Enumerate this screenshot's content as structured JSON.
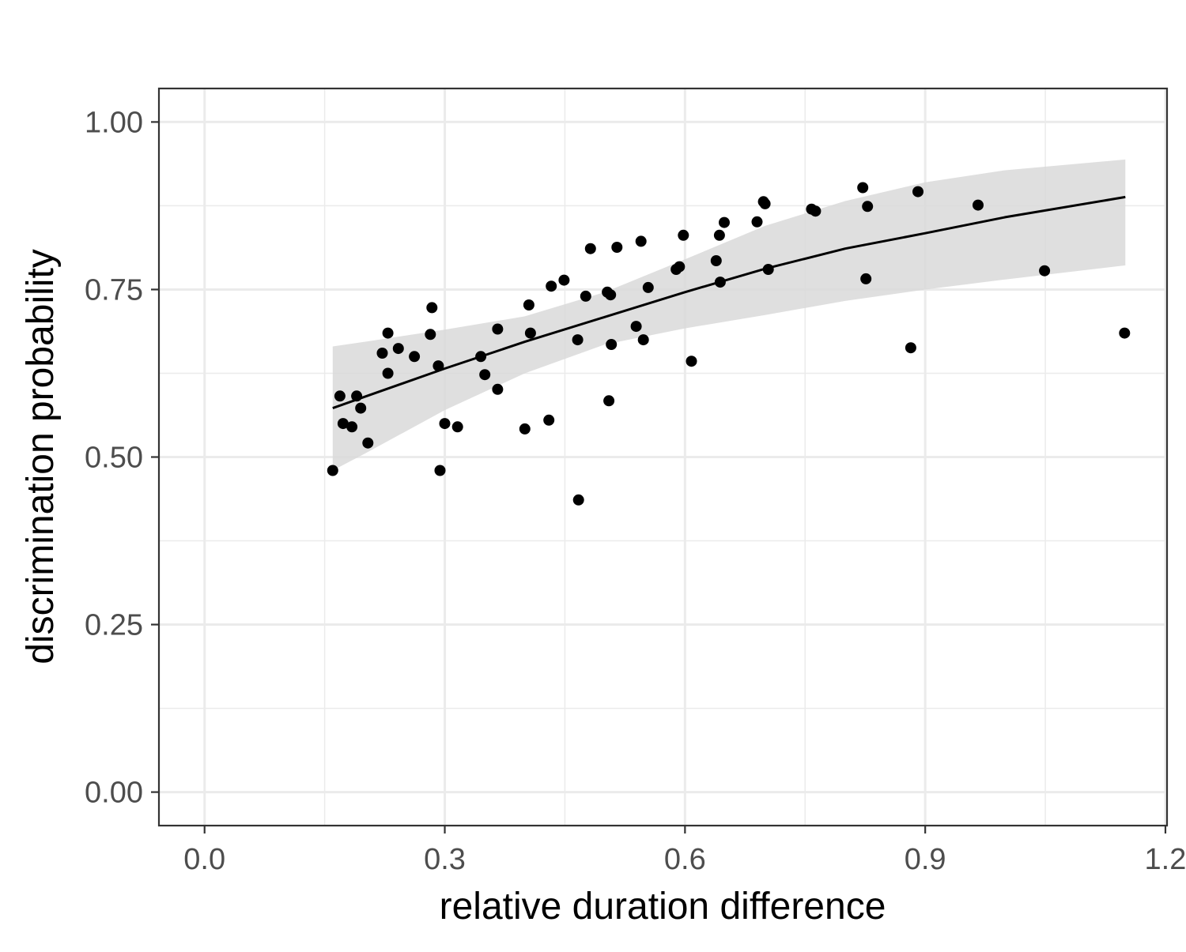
{
  "chart_data": {
    "type": "scatter",
    "title": "",
    "xlabel": "relative duration difference",
    "ylabel": "discrimination probability",
    "xlim": [
      -0.057,
      1.202
    ],
    "ylim": [
      -0.05,
      1.05
    ],
    "x_ticks": [
      0.0,
      0.3,
      0.6,
      0.9,
      1.2
    ],
    "x_tick_labels": [
      "0.0",
      "0.3",
      "0.6",
      "0.9",
      "1.2"
    ],
    "y_ticks": [
      0.0,
      0.25,
      0.5,
      0.75,
      1.0
    ],
    "y_tick_labels": [
      "0.00",
      "0.25",
      "0.50",
      "0.75",
      "1.00"
    ],
    "grid": true,
    "legend": "none",
    "colors": {
      "points": "#000000",
      "fit_line": "#000000",
      "ribbon": "#d9d9d9",
      "grid": "#ebebeb",
      "panel_border": "#333333"
    },
    "points": [
      {
        "x": 0.16,
        "y": 0.48
      },
      {
        "x": 0.169,
        "y": 0.591
      },
      {
        "x": 0.173,
        "y": 0.55
      },
      {
        "x": 0.184,
        "y": 0.545
      },
      {
        "x": 0.19,
        "y": 0.591
      },
      {
        "x": 0.195,
        "y": 0.573
      },
      {
        "x": 0.204,
        "y": 0.521
      },
      {
        "x": 0.222,
        "y": 0.655
      },
      {
        "x": 0.229,
        "y": 0.685
      },
      {
        "x": 0.229,
        "y": 0.625
      },
      {
        "x": 0.242,
        "y": 0.662
      },
      {
        "x": 0.262,
        "y": 0.65
      },
      {
        "x": 0.282,
        "y": 0.683
      },
      {
        "x": 0.284,
        "y": 0.723
      },
      {
        "x": 0.292,
        "y": 0.636
      },
      {
        "x": 0.294,
        "y": 0.48
      },
      {
        "x": 0.3,
        "y": 0.55
      },
      {
        "x": 0.316,
        "y": 0.545
      },
      {
        "x": 0.345,
        "y": 0.65
      },
      {
        "x": 0.35,
        "y": 0.623
      },
      {
        "x": 0.366,
        "y": 0.691
      },
      {
        "x": 0.366,
        "y": 0.601
      },
      {
        "x": 0.4,
        "y": 0.542
      },
      {
        "x": 0.405,
        "y": 0.727
      },
      {
        "x": 0.407,
        "y": 0.685
      },
      {
        "x": 0.43,
        "y": 0.555
      },
      {
        "x": 0.433,
        "y": 0.755
      },
      {
        "x": 0.449,
        "y": 0.764
      },
      {
        "x": 0.466,
        "y": 0.675
      },
      {
        "x": 0.467,
        "y": 0.436
      },
      {
        "x": 0.476,
        "y": 0.74
      },
      {
        "x": 0.482,
        "y": 0.811
      },
      {
        "x": 0.503,
        "y": 0.746
      },
      {
        "x": 0.505,
        "y": 0.584
      },
      {
        "x": 0.507,
        "y": 0.742
      },
      {
        "x": 0.508,
        "y": 0.668
      },
      {
        "x": 0.515,
        "y": 0.813
      },
      {
        "x": 0.539,
        "y": 0.695
      },
      {
        "x": 0.545,
        "y": 0.822
      },
      {
        "x": 0.548,
        "y": 0.675
      },
      {
        "x": 0.554,
        "y": 0.753
      },
      {
        "x": 0.589,
        "y": 0.78
      },
      {
        "x": 0.593,
        "y": 0.784
      },
      {
        "x": 0.598,
        "y": 0.831
      },
      {
        "x": 0.608,
        "y": 0.643
      },
      {
        "x": 0.639,
        "y": 0.793
      },
      {
        "x": 0.643,
        "y": 0.831
      },
      {
        "x": 0.644,
        "y": 0.761
      },
      {
        "x": 0.649,
        "y": 0.85
      },
      {
        "x": 0.69,
        "y": 0.851
      },
      {
        "x": 0.698,
        "y": 0.881
      },
      {
        "x": 0.7,
        "y": 0.878
      },
      {
        "x": 0.704,
        "y": 0.78
      },
      {
        "x": 0.758,
        "y": 0.87
      },
      {
        "x": 0.763,
        "y": 0.867
      },
      {
        "x": 0.822,
        "y": 0.902
      },
      {
        "x": 0.826,
        "y": 0.766
      },
      {
        "x": 0.828,
        "y": 0.874
      },
      {
        "x": 0.882,
        "y": 0.663
      },
      {
        "x": 0.891,
        "y": 0.896
      },
      {
        "x": 0.966,
        "y": 0.876
      },
      {
        "x": 1.049,
        "y": 0.778
      },
      {
        "x": 1.149,
        "y": 0.685
      }
    ],
    "fit": {
      "x": [
        0.16,
        0.2,
        0.3,
        0.4,
        0.5,
        0.6,
        0.7,
        0.8,
        0.9,
        1.0,
        1.15
      ],
      "y": [
        0.573,
        0.59,
        0.632,
        0.672,
        0.709,
        0.746,
        0.781,
        0.811,
        0.834,
        0.858,
        0.888
      ],
      "lower": [
        0.48,
        0.505,
        0.57,
        0.625,
        0.668,
        0.692,
        0.712,
        0.733,
        0.75,
        0.765,
        0.786
      ],
      "upper": [
        0.665,
        0.672,
        0.69,
        0.71,
        0.746,
        0.795,
        0.845,
        0.882,
        0.91,
        0.928,
        0.944
      ]
    }
  }
}
